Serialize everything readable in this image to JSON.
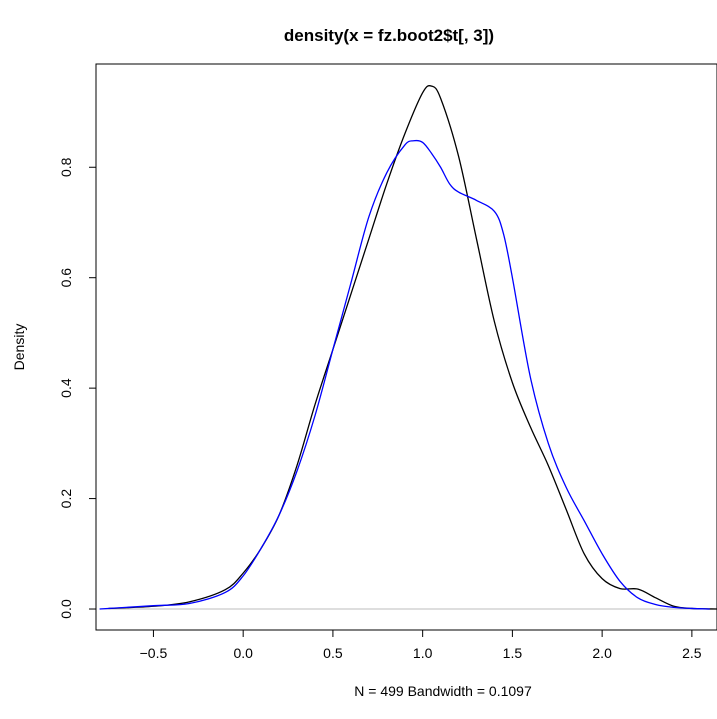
{
  "chart_data": {
    "type": "line",
    "title": "density(x = fz.boot2$t[, 3])",
    "xlabel": "N = 499   Bandwidth = 0.1097",
    "ylabel": "Density",
    "xlim": [
      -0.82,
      2.64
    ],
    "ylim": [
      -0.038,
      0.987
    ],
    "x_ticks": [
      -0.5,
      0.0,
      0.5,
      1.0,
      1.5,
      2.0,
      2.5
    ],
    "x_tick_labels": [
      "−0.5",
      "0.0",
      "0.5",
      "1.0",
      "1.5",
      "2.0",
      "2.5"
    ],
    "y_ticks": [
      0.0,
      0.2,
      0.4,
      0.6,
      0.8
    ],
    "y_tick_labels": [
      "0.0",
      "0.2",
      "0.4",
      "0.6",
      "0.8"
    ],
    "baseline": {
      "y": 0,
      "color": "#bebebe"
    },
    "grid": false,
    "series": [
      {
        "color": "#000000",
        "x": [
          -0.75,
          -0.5,
          -0.3,
          -0.1,
          0.0,
          0.1,
          0.2,
          0.3,
          0.4,
          0.5,
          0.6,
          0.7,
          0.8,
          0.9,
          1.0,
          1.05,
          1.1,
          1.2,
          1.3,
          1.4,
          1.5,
          1.6,
          1.7,
          1.8,
          1.9,
          2.0,
          2.1,
          2.2,
          2.3,
          2.4,
          2.5,
          2.64
        ],
        "y": [
          0.001,
          0.005,
          0.013,
          0.035,
          0.065,
          0.11,
          0.17,
          0.26,
          0.37,
          0.47,
          0.57,
          0.67,
          0.77,
          0.86,
          0.935,
          0.947,
          0.925,
          0.82,
          0.67,
          0.52,
          0.41,
          0.33,
          0.26,
          0.18,
          0.1,
          0.055,
          0.037,
          0.036,
          0.02,
          0.005,
          0.001,
          0.0
        ]
      },
      {
        "color": "#0000ff",
        "x": [
          -0.8,
          -0.5,
          -0.3,
          -0.1,
          0.0,
          0.1,
          0.2,
          0.3,
          0.4,
          0.5,
          0.6,
          0.7,
          0.8,
          0.9,
          0.95,
          1.0,
          1.05,
          1.1,
          1.15,
          1.2,
          1.3,
          1.4,
          1.45,
          1.5,
          1.6,
          1.7,
          1.8,
          1.9,
          2.0,
          2.1,
          2.2,
          2.3,
          2.4,
          2.5,
          2.6
        ],
        "y": [
          0.0,
          0.006,
          0.01,
          0.03,
          0.06,
          0.11,
          0.17,
          0.25,
          0.35,
          0.47,
          0.59,
          0.71,
          0.79,
          0.84,
          0.848,
          0.845,
          0.825,
          0.8,
          0.77,
          0.755,
          0.74,
          0.72,
          0.68,
          0.6,
          0.42,
          0.3,
          0.22,
          0.16,
          0.1,
          0.05,
          0.02,
          0.008,
          0.003,
          0.001,
          0.0
        ]
      }
    ]
  }
}
